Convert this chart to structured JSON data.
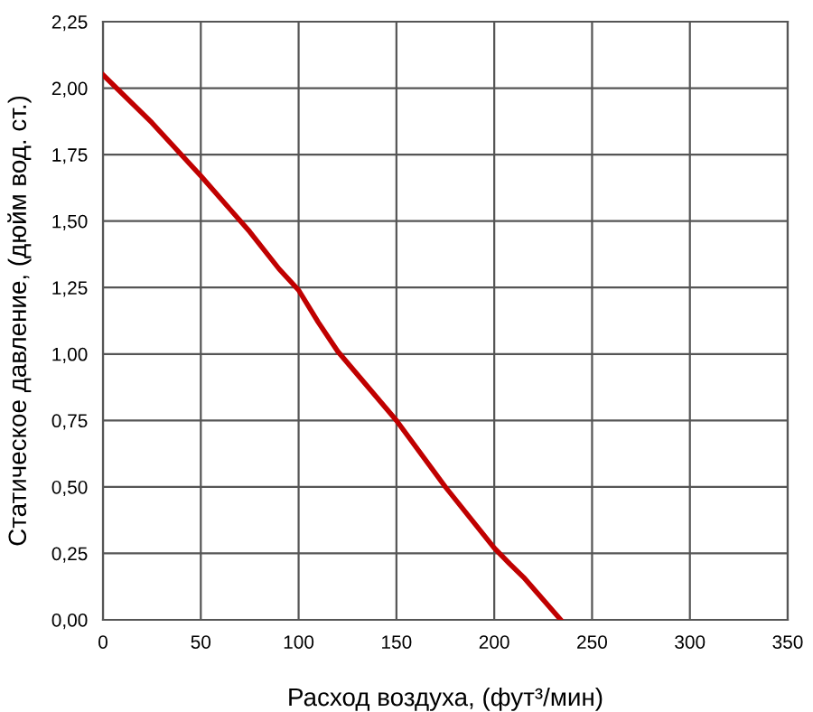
{
  "chart_data": {
    "type": "line",
    "xlabel": "Расход воздуха, (фут³/мин)",
    "ylabel": "Статическое давление, (дюйм вод. ст.)",
    "series": [
      {
        "color": "#c00000",
        "x": [
          0,
          25,
          50,
          75,
          90,
          100,
          110,
          120,
          150,
          175,
          200,
          208,
          215,
          234
        ],
        "values": [
          2.05,
          1.87,
          1.67,
          1.46,
          1.32,
          1.24,
          1.12,
          1.01,
          0.75,
          0.5,
          0.27,
          0.21,
          0.16,
          0
        ]
      }
    ],
    "xlim": [
      0,
      350
    ],
    "xticks": [
      0,
      50,
      100,
      150,
      200,
      250,
      300,
      350
    ],
    "ylim": [
      0,
      2.25
    ],
    "yticks": [
      {
        "value": 0,
        "label": "0,00"
      },
      {
        "value": 0.25,
        "label": "0,25"
      },
      {
        "value": 0.5,
        "label": "0,50"
      },
      {
        "value": 0.75,
        "label": "0,75"
      },
      {
        "value": 1,
        "label": "1,00"
      },
      {
        "value": 1.25,
        "label": "1,25"
      },
      {
        "value": 1.5,
        "label": "1,50"
      },
      {
        "value": 1.75,
        "label": "1,75"
      },
      {
        "value": 2,
        "label": "2,00"
      },
      {
        "value": 2.25,
        "label": "2,25"
      }
    ],
    "grid": true,
    "marker": "none",
    "line_style": "solid"
  }
}
